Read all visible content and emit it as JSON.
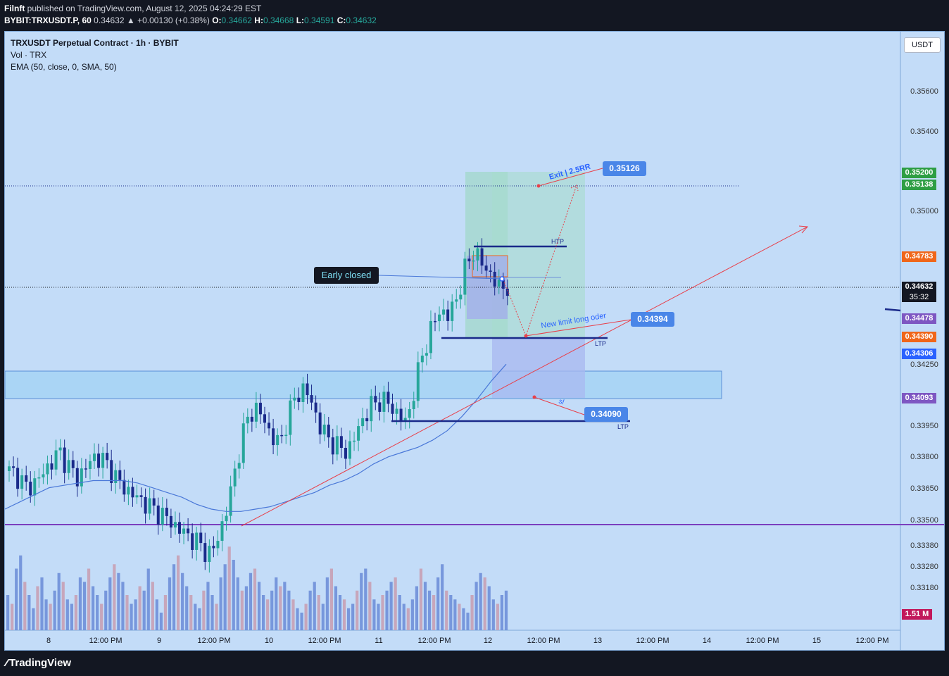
{
  "header": {
    "publisher": "Filnft",
    "published_text": "published on TradingView.com, August 12, 2025 04:24:29 EST",
    "symbol_line": "BYBIT:TRXUSDT.P, 60",
    "last": "0.34632",
    "change": "▲ +0.00130 (+0.38%)",
    "o_label": "O:",
    "o": "0.34662",
    "h_label": "H:",
    "h": "0.34668",
    "l_label": "L:",
    "l": "0.34591",
    "c_label": "C:",
    "c": "0.34632"
  },
  "legend": {
    "title": "TRXUSDT Perpetual Contract · 1h · BYBIT",
    "vol": "Vol · TRX",
    "ema": "EMA (50, close, 0, SMA, 50)"
  },
  "price_scale": {
    "currency": "USDT",
    "ticks": [
      "0.35600",
      "0.35400",
      "0.35000",
      "0.34250",
      "0.33950",
      "0.33800",
      "0.33650",
      "0.33500",
      "0.33380",
      "0.33280",
      "0.33180"
    ]
  },
  "price_chips": [
    {
      "text": "0.35200",
      "color": "#2e9e44"
    },
    {
      "text": "0.35138",
      "color": "#2e9e44"
    },
    {
      "text": "0.34783",
      "color": "#f0661a"
    },
    {
      "text": "0.34632",
      "sub": "35:32",
      "color": "#131722"
    },
    {
      "text": "0.34478",
      "color": "#7e57c2"
    },
    {
      "text": "0.34390",
      "color": "#f0661a"
    },
    {
      "text": "0.34306",
      "color": "#2962ff"
    },
    {
      "text": "0.34093",
      "color": "#7e57c2"
    },
    {
      "text": "1.51 M",
      "color": "#c2185b"
    }
  ],
  "time_axis": [
    "8",
    "12:00 PM",
    "9",
    "12:00 PM",
    "10",
    "12:00 PM",
    "11",
    "12:00 PM",
    "12",
    "12:00 PM",
    "13",
    "12:00 PM",
    "14",
    "12:00 PM",
    "15",
    "12:00 PM"
  ],
  "annotations": {
    "early_closed": "Early closed",
    "exit_label": "Exit | 2.5RR",
    "exit_price": "0.35126",
    "new_limit": "New limit long oder",
    "new_limit_price": "0.34394",
    "sl_label": "sl",
    "sl_price": "0.34090",
    "htp": "HTP",
    "ltp1": "LTP",
    "ltp2": "LTP"
  },
  "footer": {
    "brand": "TradingView"
  },
  "colors": {
    "up": "#26a69a",
    "down": "#1a2a8a",
    "bg": "#c3dcf8",
    "ema": "#4a78d8",
    "trend": "#e8404a"
  },
  "chart_data": {
    "type": "candlestick",
    "symbol": "TRXUSDT.P",
    "interval": "1h",
    "ylim": [
      0.3318,
      0.357
    ],
    "close_series": [
      0.3385,
      0.3383,
      0.3378,
      0.338,
      0.3384,
      0.3389,
      0.3393,
      0.3387,
      0.3382,
      0.3386,
      0.3391,
      0.339,
      0.3386,
      0.338,
      0.3377,
      0.3374,
      0.3372,
      0.3369,
      0.3367,
      0.3364,
      0.3361,
      0.3358,
      0.3356,
      0.3352,
      0.335,
      0.336,
      0.3372,
      0.339,
      0.3405,
      0.3412,
      0.3408,
      0.34,
      0.3396,
      0.3408,
      0.3417,
      0.342,
      0.3412,
      0.3402,
      0.3398,
      0.3395,
      0.3393,
      0.34,
      0.3408,
      0.3413,
      0.3415,
      0.3413,
      0.3409,
      0.3405,
      0.342,
      0.3435,
      0.3445,
      0.3453,
      0.345,
      0.3458,
      0.347,
      0.3478,
      0.3472,
      0.3468,
      0.3462,
      0.3463
    ],
    "ema_series": [
      0.3369,
      0.3372,
      0.3375,
      0.3378,
      0.3379,
      0.338,
      0.3381,
      0.3381,
      0.3381,
      0.338,
      0.3378,
      0.3376,
      0.3374,
      0.3371,
      0.3369,
      0.3368,
      0.3368,
      0.3369,
      0.337,
      0.3372,
      0.3374,
      0.3376,
      0.3379,
      0.3381,
      0.3384,
      0.3388,
      0.3391,
      0.3393,
      0.3395,
      0.3398,
      0.3402,
      0.3408,
      0.3415,
      0.3423,
      0.343
    ],
    "volume_max": "1.51 M",
    "levels": {
      "exit": 0.35126,
      "htp": 0.348,
      "entry_limit": 0.34394,
      "ltp": 0.3439,
      "stop_loss": 0.3409,
      "support": 0.335,
      "last_price": 0.34632
    },
    "zones": [
      {
        "name": "demand",
        "from": 0.3413,
        "to": 0.3427
      }
    ]
  }
}
